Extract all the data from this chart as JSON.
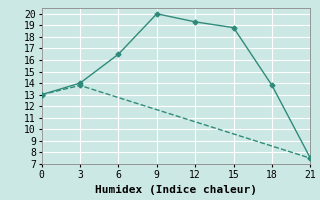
{
  "line1_x": [
    0,
    3,
    6,
    9,
    12,
    15,
    18,
    21
  ],
  "line1_y": [
    13,
    14,
    16.5,
    20,
    19.3,
    18.8,
    13.8,
    7.5
  ],
  "line2_x": [
    0,
    3,
    21
  ],
  "line2_y": [
    13,
    13.8,
    7.5
  ],
  "line_color": "#2e8b7a",
  "bg_color": "#cce8e4",
  "grid_color": "#ffffff",
  "xlabel": "Humidex (Indice chaleur)",
  "xlabel_fontsize": 8,
  "xlim": [
    0,
    21
  ],
  "ylim": [
    7,
    20.5
  ],
  "xticks": [
    0,
    3,
    6,
    9,
    12,
    15,
    18,
    21
  ],
  "yticks": [
    7,
    8,
    9,
    10,
    11,
    12,
    13,
    14,
    15,
    16,
    17,
    18,
    19,
    20
  ],
  "tick_fontsize": 7,
  "marker": "D",
  "marker_size": 2.5,
  "linewidth": 1.0,
  "line2_linestyle": "--"
}
